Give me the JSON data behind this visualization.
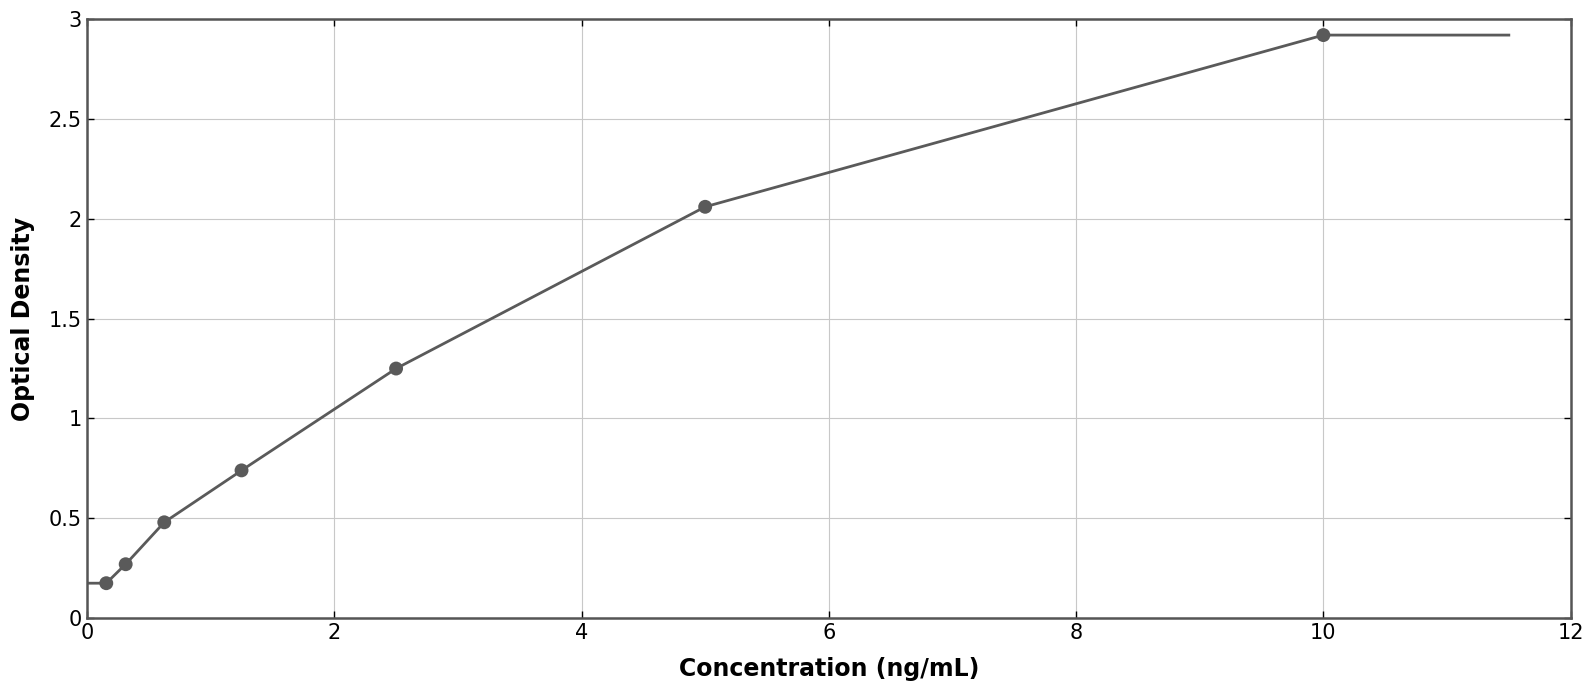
{
  "x_data": [
    0.156,
    0.313,
    0.625,
    1.25,
    2.5,
    5.0,
    10.0
  ],
  "y_data": [
    0.175,
    0.27,
    0.48,
    0.74,
    1.25,
    2.06,
    2.92
  ],
  "xlabel": "Concentration (ng/mL)",
  "ylabel": "Optical Density",
  "xlim": [
    0,
    12
  ],
  "ylim": [
    0,
    3
  ],
  "xticks": [
    0,
    2,
    4,
    6,
    8,
    10,
    12
  ],
  "yticks": [
    0,
    0.5,
    1.0,
    1.5,
    2.0,
    2.5,
    3.0
  ],
  "point_color": "#5a5a5a",
  "line_color": "#5a5a5a",
  "grid_color": "#c8c8c8",
  "background_color": "#ffffff",
  "border_color": "#555555",
  "figure_bg": "#ffffff",
  "xlabel_fontsize": 17,
  "ylabel_fontsize": 17,
  "tick_fontsize": 15,
  "marker_size": 10,
  "line_width": 2.0
}
